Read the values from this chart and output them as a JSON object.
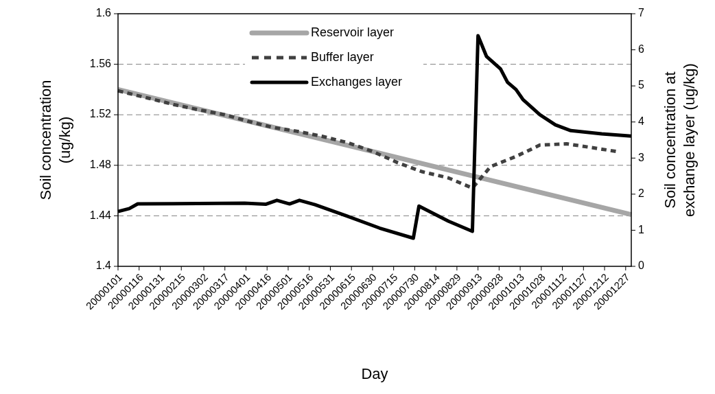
{
  "chart_data": {
    "type": "line",
    "xlabel": "Day",
    "ylabel": "Soil concentration (ug/kg)",
    "y2label": "Soil concentration at exchange layer (ug/kg)",
    "xlim": [
      "2000-01-01",
      "2000-12-31"
    ],
    "xticks": [
      {
        "value": "2000-01-01",
        "label": "20000101"
      },
      {
        "value": "2000-01-16",
        "label": "20000116"
      },
      {
        "value": "2000-01-31",
        "label": "20000131"
      },
      {
        "value": "2000-02-15",
        "label": "20000215"
      },
      {
        "value": "2000-03-02",
        "label": "20000302"
      },
      {
        "value": "2000-03-17",
        "label": "20000317"
      },
      {
        "value": "2000-04-01",
        "label": "20000401"
      },
      {
        "value": "2000-04-16",
        "label": "20000416"
      },
      {
        "value": "2000-05-01",
        "label": "20000501"
      },
      {
        "value": "2000-05-16",
        "label": "20000516"
      },
      {
        "value": "2000-05-31",
        "label": "20000531"
      },
      {
        "value": "2000-06-15",
        "label": "20000615"
      },
      {
        "value": "2000-06-30",
        "label": "20000630"
      },
      {
        "value": "2000-07-15",
        "label": "20000715"
      },
      {
        "value": "2000-07-30",
        "label": "20000730"
      },
      {
        "value": "2000-08-14",
        "label": "20000814"
      },
      {
        "value": "2000-08-29",
        "label": "20000829"
      },
      {
        "value": "2000-09-13",
        "label": "20000913"
      },
      {
        "value": "2000-09-28",
        "label": "20000928"
      },
      {
        "value": "2000-10-13",
        "label": "20001013"
      },
      {
        "value": "2000-10-28",
        "label": "20001028"
      },
      {
        "value": "2000-11-12",
        "label": "20001112"
      },
      {
        "value": "2000-11-27",
        "label": "20001127"
      },
      {
        "value": "2000-12-12",
        "label": "20001212"
      },
      {
        "value": "2000-12-27",
        "label": "20001227"
      }
    ],
    "ylim": [
      1.4,
      1.6
    ],
    "yticks": [
      1.4,
      1.44,
      1.48,
      1.52,
      1.56,
      1.6
    ],
    "y2lim": [
      0,
      7
    ],
    "y2ticks": [
      0,
      1,
      2,
      3,
      4,
      5,
      6,
      7
    ],
    "grid": "y",
    "legend": "top",
    "series": [
      {
        "name": "Reservoir layer",
        "color": "#a6a6a6",
        "line_style": "solid",
        "x": [
          "2000-01-01",
          "2000-12-31"
        ],
        "values": [
          1.54,
          1.441
        ]
      },
      {
        "name": "Buffer layer",
        "color": "#404040",
        "line_style": "dashed",
        "x": [
          "2000-01-01",
          "2000-01-23",
          "2000-02-10",
          "2000-02-27",
          "2000-03-17",
          "2000-04-02",
          "2000-04-20",
          "2000-05-07",
          "2000-05-25",
          "2000-06-12",
          "2000-06-30",
          "2000-07-18",
          "2000-08-04",
          "2000-08-23",
          "2000-09-09",
          "2000-09-22",
          "2000-10-10",
          "2000-10-27",
          "2000-11-15",
          "2000-12-03",
          "2000-12-20"
        ],
        "values": [
          1.539,
          1.533,
          1.528,
          1.524,
          1.52,
          1.515,
          1.51,
          1.507,
          1.503,
          1.498,
          1.491,
          1.482,
          1.475,
          1.47,
          1.462,
          1.479,
          1.487,
          1.496,
          1.497,
          1.494,
          1.491
        ]
      },
      {
        "name": "Exchanges layer",
        "color": "#000000",
        "line_style": "solid",
        "axis": "y2",
        "x": [
          "2000-01-01",
          "2000-01-09",
          "2000-01-15",
          "2000-03-31",
          "2000-04-15",
          "2000-04-23",
          "2000-05-02",
          "2000-05-09",
          "2000-05-20",
          "2000-06-12",
          "2000-07-05",
          "2000-07-29",
          "2000-08-02",
          "2000-08-23",
          "2000-09-09",
          "2000-09-13",
          "2000-09-19",
          "2000-09-29",
          "2000-10-04",
          "2000-10-10",
          "2000-10-15",
          "2000-10-27",
          "2000-11-07",
          "2000-11-18",
          "2000-12-10",
          "2000-12-31"
        ],
        "values": [
          1.52,
          1.6,
          1.73,
          1.75,
          1.72,
          1.83,
          1.73,
          1.83,
          1.71,
          1.39,
          1.06,
          0.78,
          1.67,
          1.25,
          0.97,
          6.39,
          5.82,
          5.47,
          5.1,
          4.9,
          4.62,
          4.2,
          3.92,
          3.76,
          3.67,
          3.61
        ]
      }
    ]
  }
}
